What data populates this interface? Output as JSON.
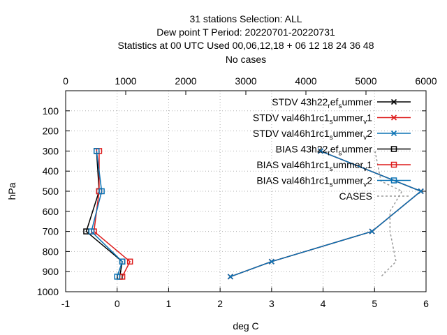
{
  "chart_data": {
    "type": "line",
    "title_lines": [
      "31 stations Selection: ALL",
      "Dew point T  Period: 20220701-20220731",
      "Statistics at 00 UTC  Used  00,06,12,18  + 06 12 18 24 36 48",
      "No cases"
    ],
    "xlabel": "deg C",
    "ylabel": "hPa",
    "xlim": [
      -1,
      6
    ],
    "ylim": [
      1000,
      0
    ],
    "x_ticks": [
      -1,
      0,
      1,
      2,
      3,
      4,
      5,
      6
    ],
    "y_ticks": [
      100,
      200,
      300,
      400,
      500,
      600,
      700,
      800,
      900,
      1000
    ],
    "x2lim": [
      0,
      6000
    ],
    "x2_ticks": [
      0,
      1000,
      2000,
      3000,
      4000,
      5000,
      6000
    ],
    "grid": true,
    "legend_position": "top-right",
    "series": [
      {
        "name": "STDV 43h22_ref_summer",
        "legend": {
          "parts": [
            [
              "STDV 43h22",
              "n"
            ],
            [
              "r",
              "s"
            ],
            [
              "ef",
              "n"
            ],
            [
              "s",
              "s"
            ],
            [
              "ummer",
              "n"
            ]
          ]
        },
        "axis": "primary",
        "color": "#000000",
        "marker": "x",
        "points": [
          [
            3.95,
            300
          ],
          [
            5.9,
            500
          ],
          [
            4.95,
            700
          ],
          [
            3.0,
            850
          ],
          [
            2.2,
            925
          ]
        ]
      },
      {
        "name": "STDV val46h1rc1_summer_v1",
        "legend": {
          "parts": [
            [
              "STDV val46h1rc1",
              "n"
            ],
            [
              "s",
              "s"
            ],
            [
              "ummer",
              "n"
            ],
            [
              "v",
              "s"
            ],
            [
              "1",
              "n"
            ]
          ]
        },
        "axis": "primary",
        "color": "#dd1c1c",
        "marker": "x",
        "points": [
          [
            3.95,
            300
          ],
          [
            5.9,
            500
          ],
          [
            4.95,
            700
          ],
          [
            3.0,
            850
          ],
          [
            2.2,
            925
          ]
        ]
      },
      {
        "name": "STDV val46h1rc1_summer_v2",
        "legend": {
          "parts": [
            [
              "STDV val46h1rc1",
              "n"
            ],
            [
              "s",
              "s"
            ],
            [
              "ummer",
              "n"
            ],
            [
              "v",
              "s"
            ],
            [
              "2",
              "n"
            ]
          ]
        },
        "axis": "primary",
        "color": "#0a72b4",
        "marker": "x",
        "points": [
          [
            3.95,
            300
          ],
          [
            5.9,
            500
          ],
          [
            4.95,
            700
          ],
          [
            3.0,
            850
          ],
          [
            2.2,
            925
          ]
        ]
      },
      {
        "name": "BIAS 43h22_ref_summer",
        "legend": {
          "parts": [
            [
              "BIAS 43h22",
              "n"
            ],
            [
              "r",
              "s"
            ],
            [
              "ef",
              "n"
            ],
            [
              "s",
              "s"
            ],
            [
              "ummer",
              "n"
            ]
          ]
        },
        "axis": "primary",
        "color": "#000000",
        "marker": "square",
        "points": [
          [
            -0.4,
            300
          ],
          [
            -0.35,
            500
          ],
          [
            -0.6,
            700
          ],
          [
            0.1,
            850
          ],
          [
            0.05,
            925
          ]
        ]
      },
      {
        "name": "BIAS val46h1rc1_summer_v1",
        "legend": {
          "parts": [
            [
              "BIAS val46h1rc1",
              "n"
            ],
            [
              "s",
              "s"
            ],
            [
              "ummer",
              "n"
            ],
            [
              "v",
              "s"
            ],
            [
              "1",
              "n"
            ]
          ]
        },
        "axis": "primary",
        "color": "#dd1c1c",
        "marker": "square",
        "points": [
          [
            -0.35,
            300
          ],
          [
            -0.35,
            500
          ],
          [
            -0.45,
            700
          ],
          [
            0.25,
            850
          ],
          [
            0.1,
            925
          ]
        ]
      },
      {
        "name": "BIAS val46h1rc1_summer_v2",
        "legend": {
          "parts": [
            [
              "BIAS val46h1rc1",
              "n"
            ],
            [
              "s",
              "s"
            ],
            [
              "ummer",
              "n"
            ],
            [
              "v",
              "s"
            ],
            [
              "2",
              "n"
            ]
          ]
        },
        "axis": "primary",
        "color": "#0a72b4",
        "marker": "square",
        "points": [
          [
            -0.4,
            300
          ],
          [
            -0.3,
            500
          ],
          [
            -0.5,
            700
          ],
          [
            0.1,
            850
          ],
          [
            0.0,
            925
          ]
        ]
      },
      {
        "name": "CASES",
        "legend": {
          "parts": [
            [
              "CASES",
              "n"
            ]
          ]
        },
        "axis": "secondary",
        "color": "#999999",
        "marker": "none",
        "dashed": true,
        "points": [
          [
            5150,
            300
          ],
          [
            5250,
            450
          ],
          [
            5600,
            500
          ],
          [
            5400,
            600
          ],
          [
            5400,
            700
          ],
          [
            5500,
            850
          ],
          [
            5250,
            925
          ]
        ]
      }
    ]
  }
}
